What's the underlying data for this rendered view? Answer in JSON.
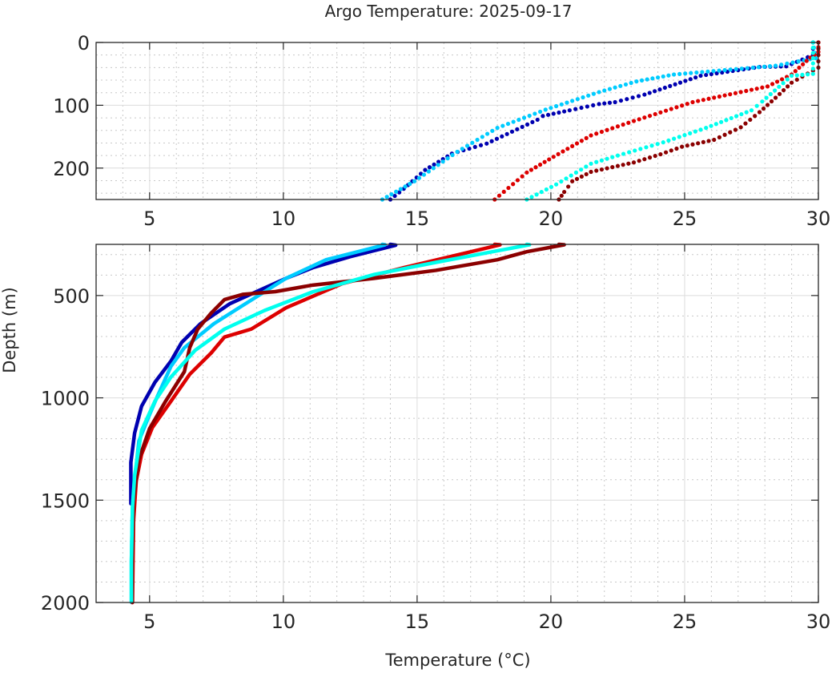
{
  "chart_data": {
    "type": "scatter",
    "title": "Argo Temperature: 2025-09-17",
    "xlabel": "Temperature (°C)",
    "ylabel": "Depth (m)",
    "grid": true,
    "legend": "none",
    "panels": [
      {
        "name": "upper",
        "xlim": [
          3,
          30
        ],
        "ylim": [
          0,
          250
        ],
        "y_reversed": true,
        "xticks": [
          5,
          10,
          15,
          20,
          25,
          30
        ],
        "yticks": [
          0,
          100,
          200
        ],
        "xtick_labels": [
          "5",
          "10",
          "15",
          "20",
          "25",
          "30"
        ],
        "ytick_labels": [
          "0",
          "100",
          "200"
        ]
      },
      {
        "name": "lower",
        "xlim": [
          3,
          30
        ],
        "ylim": [
          250,
          2000
        ],
        "y_reversed": true,
        "xticks": [
          5,
          10,
          15,
          20,
          25,
          30
        ],
        "yticks": [
          500,
          1000,
          1500,
          2000
        ],
        "xtick_labels": [
          "5",
          "10",
          "15",
          "20",
          "25",
          "30"
        ],
        "ytick_labels": [
          "500",
          "1000",
          "1500",
          "2000"
        ]
      }
    ],
    "series": [
      {
        "name": "profile-navy",
        "color": "#0000b0",
        "points": [
          [
            29.8,
            0
          ],
          [
            29.8,
            20
          ],
          [
            28.8,
            38
          ],
          [
            27.8,
            39
          ],
          [
            25.6,
            53
          ],
          [
            23.5,
            83
          ],
          [
            22.4,
            95
          ],
          [
            21.8,
            98
          ],
          [
            20.7,
            108
          ],
          [
            19.7,
            117
          ],
          [
            19.5,
            123
          ],
          [
            17.6,
            161
          ],
          [
            16.3,
            177
          ],
          [
            15.3,
            203
          ],
          [
            14.5,
            233
          ],
          [
            14.0,
            250
          ],
          [
            14.2,
            254
          ],
          [
            12.5,
            310
          ],
          [
            11.1,
            364
          ],
          [
            10.1,
            416
          ],
          [
            9.1,
            475
          ],
          [
            8.0,
            540
          ],
          [
            6.9,
            638
          ],
          [
            6.2,
            729
          ],
          [
            5.8,
            820
          ],
          [
            5.2,
            924
          ],
          [
            4.7,
            1041
          ],
          [
            4.44,
            1172
          ],
          [
            4.3,
            1315
          ],
          [
            4.3,
            1517
          ]
        ]
      },
      {
        "name": "profile-deepskyblue",
        "color": "#00ccff",
        "points": [
          [
            29.8,
            0
          ],
          [
            29.9,
            25
          ],
          [
            28.4,
            37
          ],
          [
            24.6,
            51
          ],
          [
            23.2,
            62
          ],
          [
            21.8,
            79
          ],
          [
            19.8,
            107
          ],
          [
            18.0,
            136
          ],
          [
            16.5,
            174
          ],
          [
            14.9,
            221
          ],
          [
            13.7,
            250
          ],
          [
            13.8,
            252
          ],
          [
            11.6,
            325
          ],
          [
            10.1,
            416
          ],
          [
            9.45,
            469
          ],
          [
            8.5,
            547
          ],
          [
            7.4,
            638
          ],
          [
            6.3,
            755
          ],
          [
            5.8,
            846
          ],
          [
            5.3,
            990
          ],
          [
            4.96,
            1094
          ],
          [
            4.6,
            1211
          ],
          [
            4.44,
            1406
          ],
          [
            4.36,
            1536
          ],
          [
            4.32,
            1797
          ],
          [
            4.32,
            1999
          ]
        ]
      },
      {
        "name": "profile-red",
        "color": "#dd0000",
        "points": [
          [
            30.0,
            0
          ],
          [
            30.0,
            15
          ],
          [
            29.7,
            24
          ],
          [
            29.0,
            51
          ],
          [
            28.1,
            70
          ],
          [
            25.3,
            95
          ],
          [
            23.1,
            125
          ],
          [
            21.5,
            148
          ],
          [
            20.1,
            182
          ],
          [
            19.1,
            207
          ],
          [
            17.9,
            250
          ],
          [
            18.1,
            252
          ],
          [
            14.5,
            364
          ],
          [
            12.2,
            442
          ],
          [
            10.1,
            560
          ],
          [
            8.8,
            664
          ],
          [
            7.8,
            703
          ],
          [
            7.3,
            781
          ],
          [
            6.5,
            885
          ],
          [
            5.8,
            1016
          ],
          [
            5.1,
            1146
          ],
          [
            4.7,
            1276
          ],
          [
            4.5,
            1406
          ],
          [
            4.4,
            1602
          ],
          [
            4.36,
            2000
          ]
        ]
      },
      {
        "name": "profile-darkred",
        "color": "#8b0000",
        "points": [
          [
            30.0,
            0
          ],
          [
            30.0,
            40
          ],
          [
            29.0,
            64
          ],
          [
            28.4,
            88
          ],
          [
            27.8,
            111
          ],
          [
            27.1,
            135
          ],
          [
            26.1,
            155
          ],
          [
            24.9,
            166
          ],
          [
            24.1,
            178
          ],
          [
            23.1,
            191
          ],
          [
            21.5,
            206
          ],
          [
            20.8,
            221
          ],
          [
            20.5,
            238
          ],
          [
            20.3,
            250
          ],
          [
            20.5,
            252
          ],
          [
            19.1,
            286
          ],
          [
            18.0,
            325
          ],
          [
            15.7,
            377
          ],
          [
            13.4,
            416
          ],
          [
            11.1,
            449
          ],
          [
            9.7,
            481
          ],
          [
            8.5,
            494
          ],
          [
            7.8,
            520
          ],
          [
            7.3,
            586
          ],
          [
            6.8,
            664
          ],
          [
            6.5,
            755
          ],
          [
            6.3,
            872
          ],
          [
            5.6,
            1016
          ],
          [
            5.0,
            1150
          ],
          [
            4.6,
            1300
          ],
          [
            4.4,
            1500
          ],
          [
            4.35,
            1800
          ],
          [
            4.35,
            2000
          ]
        ]
      },
      {
        "name": "profile-cyan",
        "color": "#00ffee",
        "points": [
          [
            29.8,
            0
          ],
          [
            29.8,
            50
          ],
          [
            29.0,
            53
          ],
          [
            27.9,
            94
          ],
          [
            27.5,
            108
          ],
          [
            25.8,
            136
          ],
          [
            24.2,
            159
          ],
          [
            22.5,
            180
          ],
          [
            21.5,
            193
          ],
          [
            20.2,
            226
          ],
          [
            19.1,
            250
          ],
          [
            19.2,
            252
          ],
          [
            15.7,
            338
          ],
          [
            13.4,
            397
          ],
          [
            11.1,
            482
          ],
          [
            9.3,
            573
          ],
          [
            7.8,
            664
          ],
          [
            6.7,
            768
          ],
          [
            5.8,
            898
          ],
          [
            5.2,
            1016
          ],
          [
            4.7,
            1159
          ],
          [
            4.44,
            1380
          ],
          [
            4.36,
            1536
          ],
          [
            4.32,
            1800
          ],
          [
            4.32,
            1995
          ]
        ]
      }
    ]
  }
}
